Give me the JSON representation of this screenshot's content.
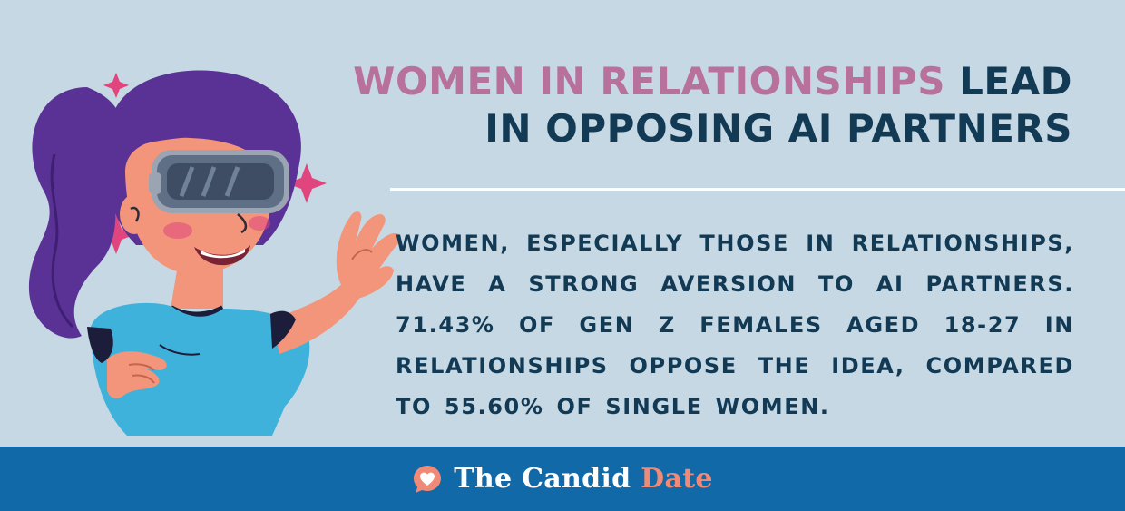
{
  "headline": {
    "highlight": "WOMEN IN RELATIONSHIPS",
    "rest_line1": " LEAD",
    "line2": "IN OPPOSING AI PARTNERS"
  },
  "body": {
    "text": "WOMEN, ESPECIALLY THOSE IN RELATIONSHIPS, HAVE A STRONG AVERSION TO AI PARTNERS. 71.43% OF GEN Z FEMALES AGED 18-27 IN RELATIONSHIPS OPPOSE THE IDEA, COMPARED TO 55.60% OF SINGLE WOMEN."
  },
  "footer": {
    "brand_main": "The Candid ",
    "brand_accent": "Date"
  },
  "illustration": {
    "subject": "woman-wearing-vr-headset"
  },
  "colors": {
    "background": "#c6d8e3",
    "headline_dark": "#123a55",
    "headline_accent": "#b8719d",
    "footer_bg": "#1169a8",
    "brand_accent": "#f08a78",
    "sparkle": "#e0457e",
    "hair": "#5a3296",
    "shirt": "#3fb2db",
    "skin": "#f2957a"
  }
}
